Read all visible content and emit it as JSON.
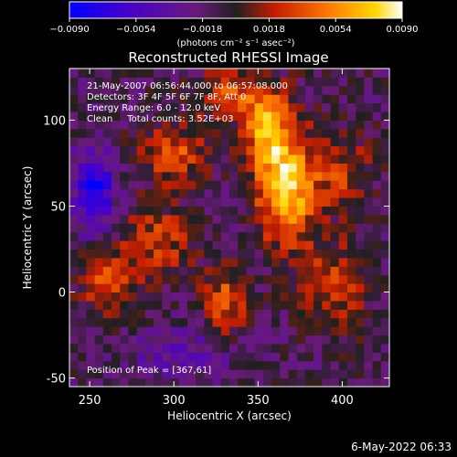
{
  "chart_data": {
    "type": "heatmap",
    "title": "Reconstructed RHESSI Image",
    "xlabel": "Heliocentric X (arcsec)",
    "ylabel": "Heliocentric Y (arcsec)",
    "xlim": [
      238,
      428
    ],
    "ylim": [
      -55,
      130
    ],
    "xticks": [
      250,
      300,
      350,
      400
    ],
    "yticks": [
      -50,
      0,
      50,
      100
    ],
    "colorbar": {
      "range": [
        -0.009,
        0.009
      ],
      "ticks": [
        -0.009,
        -0.0054,
        -0.0018,
        0.0018,
        0.0054,
        0.009
      ],
      "tick_labels": [
        "−0.0090",
        "−0.0054",
        "−0.0018",
        "0.0018",
        "0.0054",
        "0.0090"
      ],
      "units_label": "(photons cm⁻² s⁻¹ asec⁻²)"
    },
    "annotations": [
      "21-May-2007 06:56:44.000 to 06:57:08.000",
      "Detectors: 3F 4F 5F 6F 7F 8F, Att 0",
      "Energy Range: 6.0 - 12.0 keV",
      "Clean     Total counts: 3.52E+03"
    ],
    "peak_label": "Position of Peak = [367,61]",
    "peak": {
      "x": 367,
      "y": 61,
      "value": 0.009
    },
    "sources": [
      {
        "x": 367,
        "y": 61,
        "value": 0.009,
        "sx": 12,
        "sy": 22
      },
      {
        "x": 355,
        "y": 96,
        "value": 0.0065,
        "sx": 10,
        "sy": 16
      },
      {
        "x": 332,
        "y": 115,
        "value": 0.004,
        "sx": 14,
        "sy": 10
      },
      {
        "x": 300,
        "y": 80,
        "value": 0.0045,
        "sx": 14,
        "sy": 12
      },
      {
        "x": 290,
        "y": 30,
        "value": 0.004,
        "sx": 14,
        "sy": 14
      },
      {
        "x": 330,
        "y": -5,
        "value": 0.0045,
        "sx": 10,
        "sy": 14
      },
      {
        "x": 262,
        "y": 5,
        "value": 0.0045,
        "sx": 12,
        "sy": 12
      },
      {
        "x": 395,
        "y": 5,
        "value": 0.004,
        "sx": 14,
        "sy": 16
      },
      {
        "x": 400,
        "y": 70,
        "value": 0.0035,
        "sx": 12,
        "sy": 16
      },
      {
        "x": 253,
        "y": 60,
        "value": -0.007,
        "sx": 8,
        "sy": 16
      },
      {
        "x": 305,
        "y": -35,
        "value": -0.003,
        "sx": 20,
        "sy": 10
      }
    ]
  },
  "footer": {
    "date": "6-May-2022 06:33"
  },
  "colors": {
    "background": "#000000",
    "foreground": "#ffffff"
  }
}
